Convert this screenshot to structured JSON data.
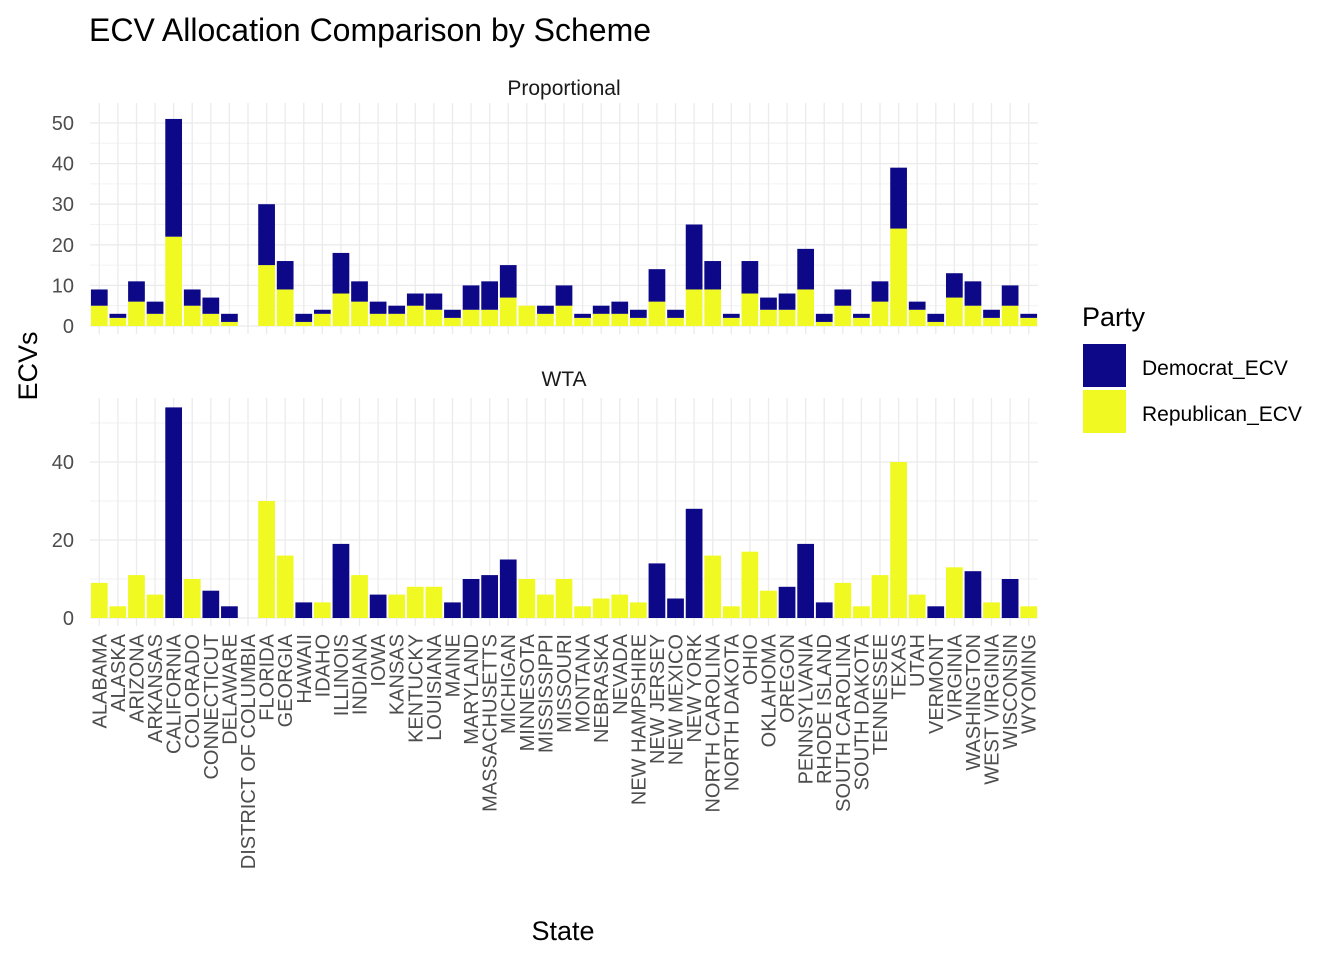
{
  "chart_data": {
    "type": "bar",
    "title": "ECV Allocation Comparison by Scheme",
    "xlabel": "State",
    "ylabel": "ECVs",
    "legend": {
      "title": "Party",
      "position": "right",
      "entries": [
        "Democrat_ECV",
        "Republican_ECV"
      ]
    },
    "colors": {
      "Democrat_ECV": "#0d0887",
      "Republican_ECV": "#f0f921"
    },
    "grid": true,
    "categories": [
      "ALABAMA",
      "ALASKA",
      "ARIZONA",
      "ARKANSAS",
      "CALIFORNIA",
      "COLORADO",
      "CONNECTICUT",
      "DELAWARE",
      "DISTRICT OF COLUMBIA",
      "FLORIDA",
      "GEORGIA",
      "HAWAII",
      "IDAHO",
      "ILLINOIS",
      "INDIANA",
      "IOWA",
      "KANSAS",
      "KENTUCKY",
      "LOUISIANA",
      "MAINE",
      "MARYLAND",
      "MASSACHUSETTS",
      "MICHIGAN",
      "MINNESOTA",
      "MISSISSIPPI",
      "MISSOURI",
      "MONTANA",
      "NEBRASKA",
      "NEVADA",
      "NEW HAMPSHIRE",
      "NEW JERSEY",
      "NEW MEXICO",
      "NEW YORK",
      "NORTH CAROLINA",
      "NORTH DAKOTA",
      "OHIO",
      "OKLAHOMA",
      "OREGON",
      "PENNSYLVANIA",
      "RHODE ISLAND",
      "SOUTH CAROLINA",
      "SOUTH DAKOTA",
      "TENNESSEE",
      "TEXAS",
      "UTAH",
      "VERMONT",
      "VIRGINIA",
      "WASHINGTON",
      "WEST VIRGINIA",
      "WISCONSIN",
      "WYOMING"
    ],
    "facets": [
      {
        "name": "Proportional",
        "ylim": [
          0,
          53
        ],
        "yticks": [
          0,
          10,
          20,
          30,
          40,
          50
        ],
        "series": [
          {
            "name": "Democrat_ECV",
            "values": [
              4,
              1,
              5,
              3,
              29,
              4,
              4,
              2,
              0,
              15,
              7,
              2,
              1,
              10,
              5,
              3,
              2,
              3,
              4,
              2,
              6,
              7,
              8,
              0,
              2,
              5,
              1,
              2,
              3,
              2,
              8,
              2,
              16,
              7,
              1,
              8,
              3,
              4,
              10,
              2,
              4,
              1,
              5,
              15,
              2,
              2,
              6,
              6,
              2,
              5,
              1
            ]
          },
          {
            "name": "Republican_ECV",
            "values": [
              5,
              2,
              6,
              3,
              22,
              5,
              3,
              1,
              0,
              15,
              9,
              1,
              3,
              8,
              6,
              3,
              3,
              5,
              4,
              2,
              4,
              4,
              7,
              5,
              3,
              5,
              2,
              3,
              3,
              2,
              6,
              2,
              9,
              9,
              2,
              8,
              4,
              4,
              9,
              1,
              5,
              2,
              6,
              24,
              4,
              1,
              7,
              5,
              2,
              5,
              2
            ]
          }
        ]
      },
      {
        "name": "WTA",
        "ylim": [
          0,
          56
        ],
        "yticks": [
          0,
          20,
          40
        ],
        "series": [
          {
            "name": "Democrat_ECV",
            "values": [
              0,
              0,
              0,
              0,
              54,
              0,
              7,
              3,
              0,
              0,
              0,
              4,
              0,
              19,
              0,
              6,
              0,
              0,
              0,
              4,
              10,
              11,
              15,
              0,
              0,
              0,
              0,
              0,
              0,
              0,
              14,
              5,
              28,
              0,
              0,
              0,
              0,
              8,
              19,
              4,
              0,
              0,
              0,
              0,
              0,
              3,
              0,
              12,
              0,
              10,
              0
            ]
          },
          {
            "name": "Republican_ECV",
            "values": [
              9,
              3,
              11,
              6,
              0,
              10,
              0,
              0,
              0,
              30,
              16,
              0,
              4,
              0,
              11,
              0,
              6,
              8,
              8,
              0,
              0,
              0,
              0,
              10,
              6,
              10,
              3,
              5,
              6,
              4,
              0,
              0,
              0,
              16,
              3,
              17,
              7,
              0,
              0,
              0,
              9,
              3,
              11,
              40,
              6,
              0,
              13,
              0,
              4,
              0,
              3
            ]
          }
        ]
      }
    ]
  }
}
